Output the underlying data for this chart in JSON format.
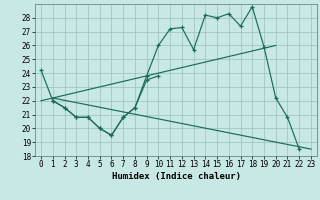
{
  "bg_color": "#c8e8e5",
  "grid_color": "#9bbfbd",
  "line_color": "#1a6b5a",
  "xlabel": "Humidex (Indice chaleur)",
  "xlim": [
    -0.5,
    23.5
  ],
  "ylim": [
    18,
    29
  ],
  "xticks": [
    0,
    1,
    2,
    3,
    4,
    5,
    6,
    7,
    8,
    9,
    10,
    11,
    12,
    13,
    14,
    15,
    16,
    17,
    18,
    19,
    20,
    21,
    22,
    23
  ],
  "yticks": [
    18,
    19,
    20,
    21,
    22,
    23,
    24,
    25,
    26,
    27,
    28
  ],
  "line1_x": [
    0,
    1,
    2,
    3,
    4,
    5,
    6,
    7,
    8,
    9,
    10,
    11,
    12,
    13,
    14,
    15,
    16,
    17,
    18,
    19,
    20,
    21,
    22
  ],
  "line1_y": [
    24.2,
    22.0,
    21.5,
    20.8,
    20.8,
    20.0,
    19.5,
    20.8,
    21.5,
    23.8,
    26.0,
    27.2,
    27.3,
    25.7,
    28.2,
    28.0,
    28.3,
    27.4,
    28.8,
    25.9,
    22.2,
    20.8,
    18.5
  ],
  "line2_x": [
    1,
    2,
    3,
    4,
    5,
    6,
    7,
    8,
    9,
    10
  ],
  "line2_y": [
    22.0,
    21.5,
    20.8,
    20.8,
    20.0,
    19.5,
    20.8,
    21.5,
    23.5,
    23.8
  ],
  "line3_x": [
    0,
    20
  ],
  "line3_y": [
    22.0,
    26.0
  ],
  "line4_x": [
    1,
    23
  ],
  "line4_y": [
    22.2,
    18.5
  ],
  "xlabel_fontsize": 6.5,
  "tick_fontsize": 5.5
}
